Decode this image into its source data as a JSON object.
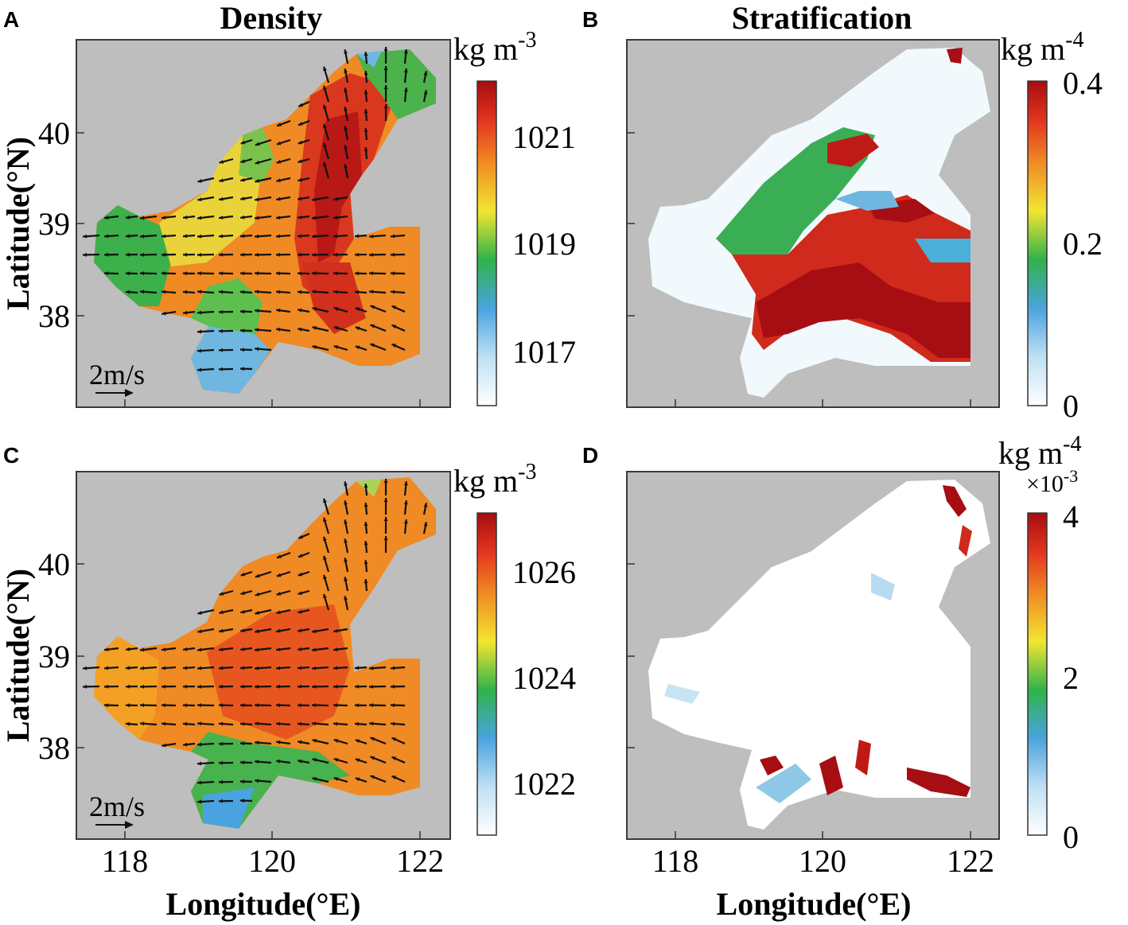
{
  "figure": {
    "panels": [
      {
        "letter": "A",
        "title": "Density",
        "cbar_unit": "kg m",
        "cbar_unit_exp": "-3",
        "cbar_ticks": [
          "1021",
          "1019",
          "1017"
        ],
        "cbar_multiplier": "",
        "y_ticks": [
          "40",
          "39",
          "38"
        ],
        "scale_label": "2m/s",
        "colormap": "parula-jet"
      },
      {
        "letter": "B",
        "title": "Stratification",
        "cbar_unit": "kg m",
        "cbar_unit_exp": "-4",
        "cbar_ticks": [
          "0.4",
          "0.2",
          "0"
        ],
        "cbar_multiplier": "",
        "y_ticks": [],
        "scale_label": ""
      },
      {
        "letter": "C",
        "title": "",
        "cbar_unit": "kg m",
        "cbar_unit_exp": "-3",
        "cbar_ticks": [
          "1026",
          "1024",
          "1022"
        ],
        "cbar_multiplier": "",
        "y_ticks": [
          "40",
          "39",
          "38"
        ],
        "scale_label": "2m/s"
      },
      {
        "letter": "D",
        "title": "",
        "cbar_unit": "kg m",
        "cbar_unit_exp": "-4",
        "cbar_ticks": [
          "4",
          "2",
          "0"
        ],
        "cbar_multiplier": "×10",
        "cbar_multiplier_exp": "-3",
        "y_ticks": [],
        "scale_label": ""
      }
    ],
    "y_axis_label": "Latitude(°N)",
    "x_axis_label": "Longitude(°E)",
    "x_ticks": [
      "118",
      "120",
      "122"
    ],
    "colors": {
      "land": "#bebebe",
      "frame": "#3a3a3a",
      "arrow": "#111111",
      "colormap": [
        "#ffffff",
        "#4aa3df",
        "#2fb34a",
        "#f2e531",
        "#f08a24",
        "#e2351f",
        "#a50d12"
      ]
    }
  }
}
